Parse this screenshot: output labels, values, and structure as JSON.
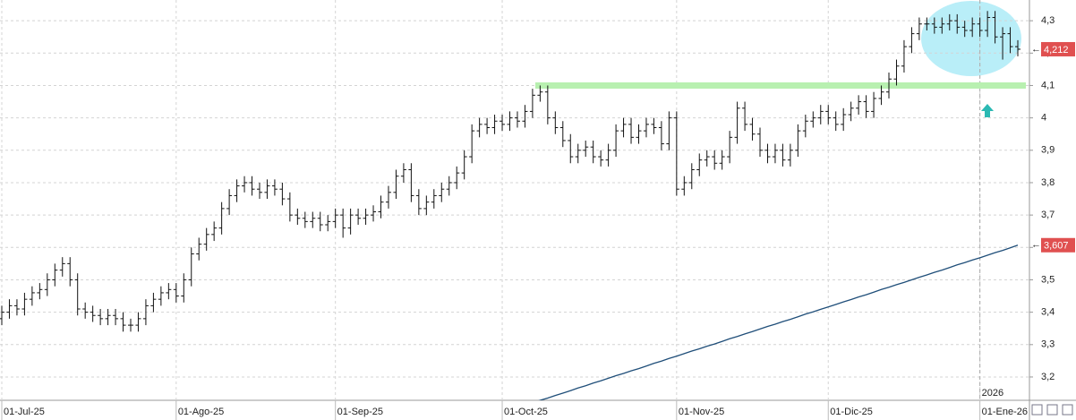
{
  "chart_data": {
    "type": "ohlc",
    "categories": [
      "01-Jul-25",
      null,
      null,
      null,
      null,
      null,
      null,
      null,
      null,
      null,
      null,
      null,
      null,
      null,
      null,
      null,
      null,
      null,
      null,
      null,
      null,
      null,
      null,
      "01-Ago-25",
      null,
      null,
      null,
      null,
      null,
      null,
      null,
      null,
      null,
      null,
      null,
      null,
      null,
      null,
      null,
      null,
      null,
      null,
      null,
      null,
      "01-Sep-25",
      null,
      null,
      null,
      null,
      null,
      null,
      null,
      null,
      null,
      null,
      null,
      null,
      null,
      null,
      null,
      null,
      null,
      null,
      null,
      null,
      null,
      "01-Oct-25",
      null,
      null,
      null,
      null,
      null,
      null,
      null,
      null,
      null,
      null,
      null,
      null,
      null,
      null,
      null,
      null,
      null,
      null,
      null,
      null,
      null,
      null,
      "01-Nov-25",
      null,
      null,
      null,
      null,
      null,
      null,
      null,
      null,
      null,
      null,
      null,
      null,
      null,
      null,
      null,
      null,
      null,
      null,
      null,
      "01-Dic-25",
      null,
      null,
      null,
      null,
      null,
      null,
      null,
      null,
      null,
      null,
      null,
      null,
      null,
      null,
      null,
      null,
      null,
      null,
      null,
      "01-Ene-26",
      null,
      null,
      null,
      null,
      null
    ],
    "series": [
      {
        "type": "ohlc",
        "color": "#111111",
        "value_label": "4,212",
        "open": [
          3.38,
          3.4,
          3.42,
          3.41,
          3.44,
          3.46,
          3.47,
          3.5,
          3.53,
          3.55,
          3.5,
          3.41,
          3.4,
          3.39,
          3.38,
          3.39,
          3.38,
          3.36,
          3.36,
          3.38,
          3.42,
          3.44,
          3.46,
          3.47,
          3.45,
          3.5,
          3.58,
          3.61,
          3.64,
          3.66,
          3.72,
          3.76,
          3.79,
          3.8,
          3.78,
          3.77,
          3.79,
          3.78,
          3.75,
          3.7,
          3.69,
          3.68,
          3.69,
          3.67,
          3.68,
          3.7,
          3.66,
          3.7,
          3.69,
          3.7,
          3.71,
          3.74,
          3.77,
          3.82,
          3.84,
          3.76,
          3.72,
          3.74,
          3.76,
          3.78,
          3.8,
          3.83,
          3.88,
          3.96,
          3.98,
          3.97,
          3.99,
          3.98,
          4.0,
          3.99,
          4.02,
          4.07,
          4.08,
          4.0,
          3.97,
          3.93,
          3.88,
          3.9,
          3.91,
          3.88,
          3.87,
          3.9,
          3.96,
          3.98,
          3.94,
          3.96,
          3.98,
          3.97,
          3.92,
          4.0,
          3.78,
          3.8,
          3.84,
          3.87,
          3.88,
          3.86,
          3.88,
          3.94,
          4.03,
          3.98,
          3.95,
          3.9,
          3.88,
          3.9,
          3.87,
          3.9,
          3.96,
          3.99,
          4.0,
          4.02,
          4.0,
          3.98,
          4.01,
          4.03,
          4.05,
          4.02,
          4.06,
          4.08,
          4.12,
          4.16,
          4.22,
          4.26,
          4.29,
          4.29,
          4.28,
          4.29,
          4.3,
          4.28,
          4.27,
          4.29,
          4.27,
          4.31,
          4.25,
          4.26,
          4.22
        ],
        "high": [
          3.42,
          3.44,
          3.44,
          3.46,
          3.48,
          3.49,
          3.52,
          3.55,
          3.57,
          3.57,
          3.52,
          3.43,
          3.42,
          3.41,
          3.41,
          3.41,
          3.4,
          3.38,
          3.4,
          3.44,
          3.46,
          3.48,
          3.49,
          3.49,
          3.52,
          3.6,
          3.63,
          3.66,
          3.68,
          3.74,
          3.78,
          3.81,
          3.82,
          3.82,
          3.8,
          3.81,
          3.81,
          3.8,
          3.77,
          3.72,
          3.71,
          3.71,
          3.71,
          3.7,
          3.72,
          3.72,
          3.72,
          3.72,
          3.72,
          3.73,
          3.76,
          3.79,
          3.84,
          3.86,
          3.86,
          3.78,
          3.76,
          3.78,
          3.8,
          3.82,
          3.85,
          3.9,
          3.98,
          4.0,
          4.0,
          4.01,
          4.01,
          4.02,
          4.02,
          4.04,
          4.09,
          4.1,
          4.1,
          4.02,
          3.99,
          3.95,
          3.92,
          3.93,
          3.93,
          3.9,
          3.92,
          3.98,
          4.0,
          4.0,
          3.98,
          4.0,
          4.0,
          3.99,
          4.02,
          4.02,
          3.82,
          3.86,
          3.89,
          3.9,
          3.9,
          3.9,
          3.96,
          4.05,
          4.05,
          4.0,
          3.97,
          3.92,
          3.92,
          3.92,
          3.92,
          3.98,
          4.01,
          4.02,
          4.04,
          4.04,
          4.02,
          4.03,
          4.05,
          4.07,
          4.07,
          4.08,
          4.1,
          4.14,
          4.18,
          4.24,
          4.28,
          4.31,
          4.31,
          4.31,
          4.31,
          4.32,
          4.32,
          4.3,
          4.31,
          4.31,
          4.33,
          4.33,
          4.28,
          4.28,
          4.24
        ],
        "low": [
          3.36,
          3.38,
          3.39,
          3.39,
          3.42,
          3.44,
          3.45,
          3.48,
          3.51,
          3.48,
          3.39,
          3.38,
          3.37,
          3.36,
          3.36,
          3.36,
          3.34,
          3.34,
          3.34,
          3.36,
          3.4,
          3.42,
          3.44,
          3.43,
          3.43,
          3.48,
          3.56,
          3.59,
          3.62,
          3.64,
          3.7,
          3.74,
          3.77,
          3.76,
          3.75,
          3.75,
          3.76,
          3.73,
          3.68,
          3.67,
          3.66,
          3.66,
          3.65,
          3.65,
          3.66,
          3.63,
          3.64,
          3.67,
          3.67,
          3.68,
          3.69,
          3.72,
          3.75,
          3.8,
          3.74,
          3.7,
          3.7,
          3.72,
          3.74,
          3.76,
          3.78,
          3.81,
          3.86,
          3.94,
          3.95,
          3.95,
          3.96,
          3.96,
          3.97,
          3.97,
          4.0,
          4.05,
          3.98,
          3.95,
          3.91,
          3.86,
          3.86,
          3.88,
          3.86,
          3.85,
          3.85,
          3.88,
          3.94,
          3.92,
          3.92,
          3.94,
          3.95,
          3.9,
          3.9,
          3.76,
          3.76,
          3.78,
          3.82,
          3.85,
          3.84,
          3.84,
          3.86,
          3.92,
          3.96,
          3.93,
          3.88,
          3.86,
          3.86,
          3.85,
          3.85,
          3.88,
          3.94,
          3.97,
          3.98,
          3.98,
          3.96,
          3.96,
          3.99,
          4.01,
          4.0,
          4.0,
          4.04,
          4.06,
          4.1,
          4.14,
          4.2,
          4.24,
          4.27,
          4.26,
          4.26,
          4.27,
          4.26,
          4.25,
          4.25,
          4.25,
          4.25,
          4.23,
          4.18,
          4.2,
          4.19
        ],
        "close": [
          3.4,
          3.42,
          3.41,
          3.44,
          3.46,
          3.47,
          3.5,
          3.53,
          3.55,
          3.5,
          3.41,
          3.4,
          3.39,
          3.38,
          3.39,
          3.38,
          3.36,
          3.36,
          3.38,
          3.42,
          3.44,
          3.46,
          3.47,
          3.45,
          3.5,
          3.58,
          3.61,
          3.64,
          3.66,
          3.72,
          3.76,
          3.79,
          3.8,
          3.78,
          3.77,
          3.79,
          3.78,
          3.75,
          3.7,
          3.69,
          3.68,
          3.69,
          3.67,
          3.68,
          3.7,
          3.66,
          3.7,
          3.69,
          3.7,
          3.71,
          3.74,
          3.77,
          3.82,
          3.84,
          3.76,
          3.72,
          3.74,
          3.76,
          3.78,
          3.8,
          3.83,
          3.88,
          3.96,
          3.98,
          3.97,
          3.99,
          3.98,
          4.0,
          3.99,
          4.02,
          4.07,
          4.08,
          4.0,
          3.97,
          3.93,
          3.88,
          3.9,
          3.91,
          3.88,
          3.87,
          3.9,
          3.96,
          3.98,
          3.94,
          3.96,
          3.98,
          3.97,
          3.92,
          4.0,
          3.78,
          3.8,
          3.84,
          3.87,
          3.88,
          3.86,
          3.88,
          3.94,
          4.03,
          3.98,
          3.95,
          3.9,
          3.88,
          3.9,
          3.87,
          3.9,
          3.96,
          3.99,
          4.0,
          4.02,
          4.0,
          3.98,
          4.01,
          4.03,
          4.05,
          4.02,
          4.06,
          4.08,
          4.12,
          4.16,
          4.22,
          4.26,
          4.29,
          4.29,
          4.28,
          4.29,
          4.3,
          4.28,
          4.27,
          4.29,
          4.27,
          4.31,
          4.25,
          4.26,
          4.22,
          4.212
        ]
      },
      {
        "type": "line",
        "color": "#1f4e79",
        "value_label": "3,607",
        "values": [
          null,
          null,
          null,
          null,
          null,
          null,
          null,
          null,
          null,
          null,
          null,
          null,
          null,
          null,
          null,
          null,
          null,
          null,
          null,
          null,
          null,
          null,
          null,
          null,
          null,
          null,
          null,
          null,
          null,
          null,
          null,
          null,
          null,
          null,
          null,
          null,
          null,
          null,
          null,
          null,
          null,
          null,
          null,
          null,
          null,
          null,
          null,
          null,
          null,
          null,
          null,
          null,
          null,
          null,
          null,
          null,
          null,
          null,
          null,
          null,
          null,
          null,
          null,
          null,
          null,
          null,
          null,
          null,
          null,
          null,
          3.12,
          3.128,
          3.135,
          3.143,
          3.15,
          3.158,
          3.166,
          3.173,
          3.181,
          3.188,
          3.196,
          3.204,
          3.211,
          3.219,
          3.226,
          3.234,
          3.242,
          3.249,
          3.257,
          3.264,
          3.272,
          3.28,
          3.287,
          3.295,
          3.302,
          3.31,
          3.318,
          3.325,
          3.333,
          3.34,
          3.348,
          3.356,
          3.363,
          3.371,
          3.378,
          3.386,
          3.394,
          3.401,
          3.409,
          3.416,
          3.424,
          3.432,
          3.439,
          3.447,
          3.454,
          3.462,
          3.47,
          3.477,
          3.485,
          3.492,
          3.5,
          3.508,
          3.515,
          3.523,
          3.53,
          3.538,
          3.546,
          3.553,
          3.561,
          3.568,
          3.576,
          3.584,
          3.591,
          3.599,
          3.607
        ]
      }
    ],
    "ylim": [
      3.128,
      4.364
    ],
    "yticks": [
      {
        "value": 3.2,
        "label": "3,2"
      },
      {
        "value": 3.3,
        "label": "3,3"
      },
      {
        "value": 3.4,
        "label": "3,4"
      },
      {
        "value": 3.5,
        "label": "3,5"
      },
      {
        "value": 3.6,
        "label": "3,6"
      },
      {
        "value": 3.7,
        "label": "3,7"
      },
      {
        "value": 3.8,
        "label": "3,8"
      },
      {
        "value": 3.9,
        "label": "3,9"
      },
      4,
      {
        "value": 4.1,
        "label": "4,1"
      },
      {
        "value": 4.2,
        "label": "4,2"
      },
      {
        "value": 4.3,
        "label": "4,3"
      }
    ],
    "grid": true,
    "annotations": [
      {
        "type": "hline",
        "value": 4.1,
        "color": "#b8f0b0"
      }
    ],
    "year_label": "2026"
  }
}
